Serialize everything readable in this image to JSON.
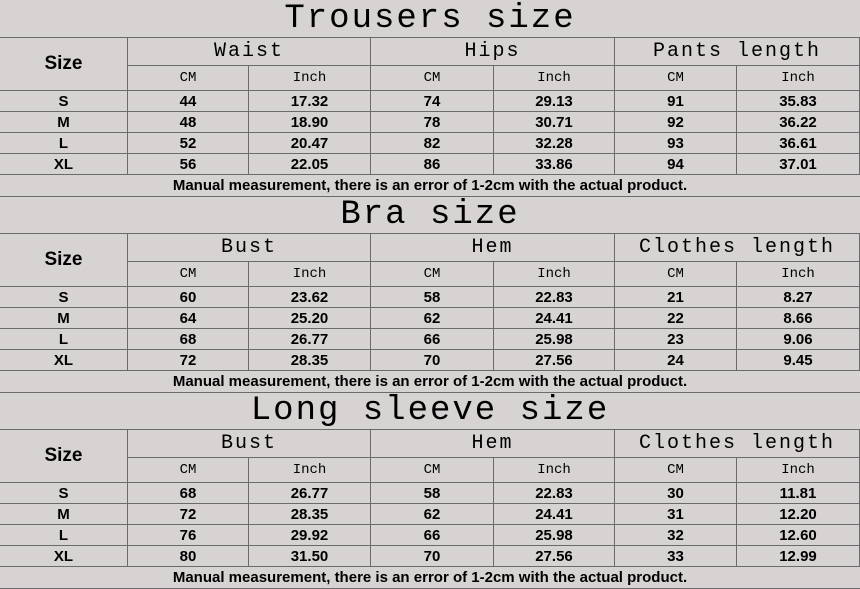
{
  "sections": [
    {
      "title": "Trousers size",
      "size_label": "Size",
      "groups": [
        "Waist",
        "Hips",
        "Pants length"
      ],
      "units": [
        "CM",
        "Inch",
        "CM",
        "Inch",
        "CM",
        "Inch"
      ],
      "rows": [
        [
          "S",
          "44",
          "17.32",
          "74",
          "29.13",
          "91",
          "35.83"
        ],
        [
          "M",
          "48",
          "18.90",
          "78",
          "30.71",
          "92",
          "36.22"
        ],
        [
          "L",
          "52",
          "20.47",
          "82",
          "32.28",
          "93",
          "36.61"
        ],
        [
          "XL",
          "56",
          "22.05",
          "86",
          "33.86",
          "94",
          "37.01"
        ]
      ],
      "note": "Manual measurement, there is an error of 1-2cm with the actual product."
    },
    {
      "title": "Bra size",
      "size_label": "Size",
      "groups": [
        "Bust",
        "Hem",
        "Clothes length"
      ],
      "units": [
        "CM",
        "Inch",
        "CM",
        "Inch",
        "CM",
        "Inch"
      ],
      "rows": [
        [
          "S",
          "60",
          "23.62",
          "58",
          "22.83",
          "21",
          "8.27"
        ],
        [
          "M",
          "64",
          "25.20",
          "62",
          "24.41",
          "22",
          "8.66"
        ],
        [
          "L",
          "68",
          "26.77",
          "66",
          "25.98",
          "23",
          "9.06"
        ],
        [
          "XL",
          "72",
          "28.35",
          "70",
          "27.56",
          "24",
          "9.45"
        ]
      ],
      "note": "Manual measurement, there is an error of 1-2cm with the actual product."
    },
    {
      "title": "Long sleeve size",
      "size_label": "Size",
      "groups": [
        "Bust",
        "Hem",
        "Clothes length"
      ],
      "units": [
        "CM",
        "Inch",
        "CM",
        "Inch",
        "CM",
        "Inch"
      ],
      "rows": [
        [
          "S",
          "68",
          "26.77",
          "58",
          "22.83",
          "30",
          "11.81"
        ],
        [
          "M",
          "72",
          "28.35",
          "62",
          "24.41",
          "31",
          "12.20"
        ],
        [
          "L",
          "76",
          "29.92",
          "66",
          "25.98",
          "32",
          "12.60"
        ],
        [
          "XL",
          "80",
          "31.50",
          "70",
          "27.56",
          "33",
          "12.99"
        ]
      ],
      "note": "Manual measurement, there is an error of 1-2cm with the actual product."
    }
  ]
}
